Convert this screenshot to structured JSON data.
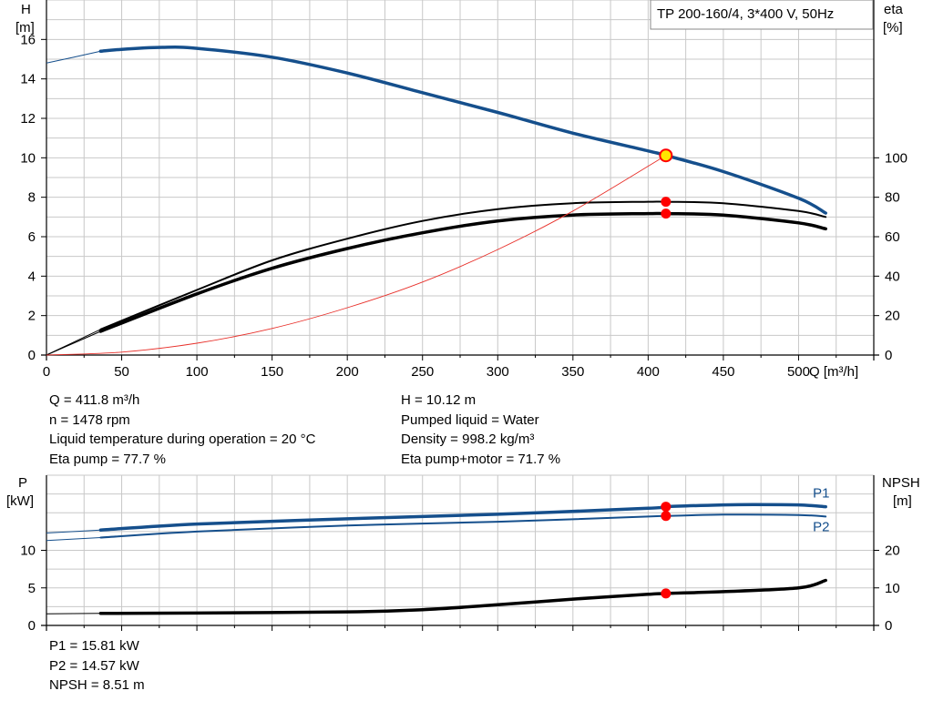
{
  "legend_text": "TP 200-160/4, 3*400 V, 50Hz",
  "top_info_left": [
    "Q = 411.8 m³/h",
    "n = 1478 rpm",
    "Liquid temperature during operation = 20 °C",
    "Eta pump = 77.7 %"
  ],
  "top_info_right": [
    "H = 10.12 m",
    "Pumped liquid = Water",
    "Density = 998.2 kg/m³",
    "Eta pump+motor = 71.7 %"
  ],
  "bottom_info": [
    "P1 = 15.81 kW",
    "P2 = 14.57 kW",
    "NPSH = 8.51 m"
  ],
  "colors": {
    "blue": "#154F8C",
    "black": "#000000",
    "system_curve": "#E8302A",
    "op_point": "#FF0000",
    "duty_fill": "#FFE600",
    "grid": "#C8C8C8"
  },
  "chart_data": [
    {
      "type": "line",
      "name": "head-efficiency",
      "xlabel": "Q [m³/h]",
      "ylabel": "H",
      "ylabel_unit": "[m]",
      "y2label": "eta",
      "y2label_unit": "[%]",
      "xlim": [
        0,
        550
      ],
      "ylim": [
        0,
        18
      ],
      "y2lim": [
        0,
        180
      ],
      "x_ticks": [
        0,
        50,
        100,
        150,
        200,
        250,
        300,
        350,
        400,
        450,
        500
      ],
      "y_ticks": [
        0,
        2,
        4,
        6,
        8,
        10,
        12,
        14,
        16
      ],
      "y2_ticks": [
        0,
        20,
        40,
        60,
        80,
        100
      ],
      "grid": true,
      "series": [
        {
          "role": "head",
          "axis": "y",
          "color": "blue",
          "x": [
            0,
            36,
            50,
            77,
            100,
            150,
            200,
            250,
            300,
            350,
            400,
            411.8,
            450,
            500,
            518
          ],
          "y": [
            14.8,
            15.4,
            15.5,
            15.6,
            15.55,
            15.1,
            14.3,
            13.3,
            12.3,
            11.25,
            10.35,
            10.12,
            9.3,
            7.95,
            7.2
          ],
          "thin_until": 36
        },
        {
          "role": "eta_pump",
          "axis": "y2",
          "color": "black",
          "x": [
            0,
            36,
            100,
            150,
            200,
            250,
            300,
            350,
            400,
            411.8,
            450,
            500,
            518
          ],
          "y": [
            0,
            13,
            33,
            48,
            59,
            68,
            74,
            77,
            77.7,
            77.7,
            77,
            73,
            70
          ],
          "thin_until": 36
        },
        {
          "role": "eta_pump_motor",
          "axis": "y2",
          "color": "black",
          "x": [
            0,
            36,
            100,
            150,
            200,
            250,
            300,
            350,
            400,
            411.8,
            450,
            500,
            518
          ],
          "y": [
            0,
            12,
            31,
            44,
            54,
            62,
            68,
            71,
            71.7,
            71.7,
            71,
            67,
            64
          ],
          "thin_until": 36
        },
        {
          "role": "system_curve",
          "axis": "y",
          "color": "system_curve",
          "x": [
            0,
            50,
            100,
            150,
            200,
            250,
            300,
            350,
            411.8
          ],
          "y": [
            0,
            0.15,
            0.6,
            1.35,
            2.4,
            3.7,
            5.35,
            7.3,
            10.12
          ]
        }
      ],
      "operating_points": [
        {
          "x": 411.8,
          "y": 10.12,
          "axis": "y",
          "style": "duty"
        },
        {
          "x": 411.8,
          "y": 77.7,
          "axis": "y2",
          "style": "dot"
        },
        {
          "x": 411.8,
          "y": 71.7,
          "axis": "y2",
          "style": "dot"
        }
      ]
    },
    {
      "type": "line",
      "name": "power-npsh",
      "ylabel": "P",
      "ylabel_unit": "[kW]",
      "y2label": "NPSH",
      "y2label_unit": "[m]",
      "xlim": [
        0,
        550
      ],
      "ylim": [
        0,
        20
      ],
      "y2lim": [
        0,
        40
      ],
      "y_ticks": [
        0,
        5,
        10
      ],
      "y2_ticks": [
        0,
        10,
        20
      ],
      "grid": true,
      "series": [
        {
          "name": "P1",
          "axis": "y",
          "color": "blue",
          "x": [
            0,
            36,
            100,
            200,
            300,
            400,
            411.8,
            450,
            470,
            500,
            518
          ],
          "y": [
            12.3,
            12.7,
            13.5,
            14.2,
            14.8,
            15.6,
            15.81,
            16.05,
            16.1,
            16.05,
            15.8
          ],
          "thin_until": 36
        },
        {
          "name": "P2",
          "axis": "y",
          "color": "blue",
          "x": [
            0,
            36,
            100,
            200,
            300,
            400,
            411.8,
            450,
            500,
            518
          ],
          "y": [
            11.3,
            11.7,
            12.5,
            13.3,
            13.8,
            14.5,
            14.57,
            14.75,
            14.7,
            14.5
          ],
          "thin_until": 36
        },
        {
          "role": "npsh",
          "axis": "y2",
          "color": "black",
          "x": [
            0,
            36,
            100,
            200,
            250,
            300,
            350,
            400,
            411.8,
            450,
            500,
            518
          ],
          "y": [
            3.1,
            3.2,
            3.3,
            3.6,
            4.2,
            5.5,
            7,
            8.3,
            8.51,
            9,
            10,
            12
          ],
          "thin_until": 36
        }
      ],
      "operating_points": [
        {
          "x": 411.8,
          "y": 15.81,
          "axis": "y",
          "style": "dot"
        },
        {
          "x": 411.8,
          "y": 14.57,
          "axis": "y",
          "style": "dot"
        },
        {
          "x": 411.8,
          "y": 8.51,
          "axis": "y2",
          "style": "dot"
        }
      ]
    }
  ]
}
